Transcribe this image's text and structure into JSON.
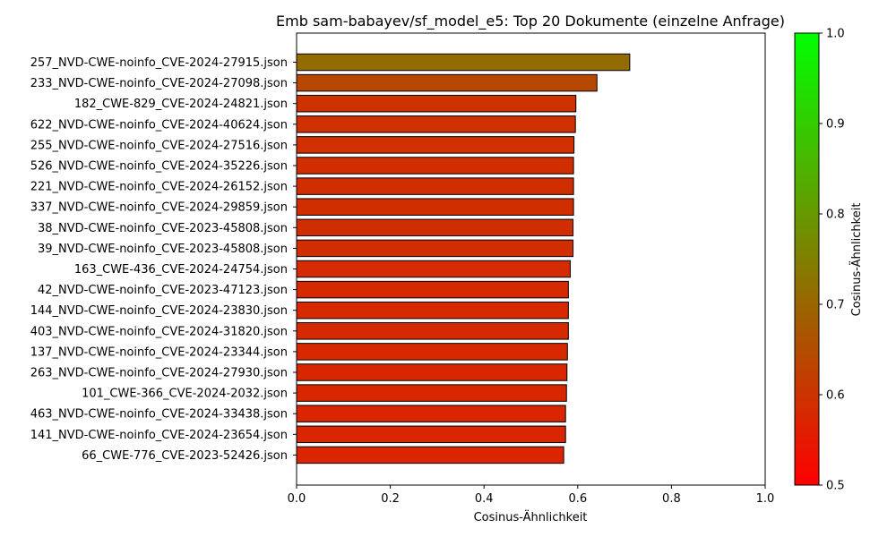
{
  "chart_data": {
    "type": "bar",
    "orientation": "horizontal",
    "title": "Emb sam-babayev/sf_model_e5: Top 20 Dokumente (einzelne Anfrage)",
    "xlabel": "Cosinus-Ähnlichkeit",
    "ylabel": "",
    "xlim": [
      0.0,
      1.0
    ],
    "xticks": [
      "0.0",
      "0.2",
      "0.4",
      "0.6",
      "0.8",
      "1.0"
    ],
    "categories": [
      "257_NVD-CWE-noinfo_CVE-2024-27915.json",
      "233_NVD-CWE-noinfo_CVE-2024-27098.json",
      "182_CWE-829_CVE-2024-24821.json",
      "622_NVD-CWE-noinfo_CVE-2024-40624.json",
      "255_NVD-CWE-noinfo_CVE-2024-27516.json",
      "526_NVD-CWE-noinfo_CVE-2024-35226.json",
      "221_NVD-CWE-noinfo_CVE-2024-26152.json",
      "337_NVD-CWE-noinfo_CVE-2024-29859.json",
      "38_NVD-CWE-noinfo_CVE-2023-45808.json",
      "39_NVD-CWE-noinfo_CVE-2023-45808.json",
      "163_CWE-436_CVE-2024-24754.json",
      "42_NVD-CWE-noinfo_CVE-2023-47123.json",
      "144_NVD-CWE-noinfo_CVE-2024-23830.json",
      "403_NVD-CWE-noinfo_CVE-2024-31820.json",
      "137_NVD-CWE-noinfo_CVE-2024-23344.json",
      "263_NVD-CWE-noinfo_CVE-2024-27930.json",
      "101_CWE-366_CVE-2024-2032.json",
      "463_NVD-CWE-noinfo_CVE-2024-33438.json",
      "141_NVD-CWE-noinfo_CVE-2024-23654.json",
      "66_CWE-776_CVE-2023-52426.json"
    ],
    "values": [
      0.711,
      0.641,
      0.596,
      0.595,
      0.592,
      0.591,
      0.591,
      0.591,
      0.59,
      0.59,
      0.584,
      0.58,
      0.58,
      0.58,
      0.578,
      0.577,
      0.576,
      0.574,
      0.574,
      0.57
    ],
    "colorbar": {
      "label": "Cosinus-Ähnlichkeit",
      "range": [
        0.5,
        1.0
      ],
      "ticks": [
        "0.5",
        "0.6",
        "0.7",
        "0.8",
        "0.9",
        "1.0"
      ],
      "color_low": "#ff0000",
      "color_high": "#00ff00"
    },
    "grid": false,
    "bar_edge_color": "#000000"
  }
}
